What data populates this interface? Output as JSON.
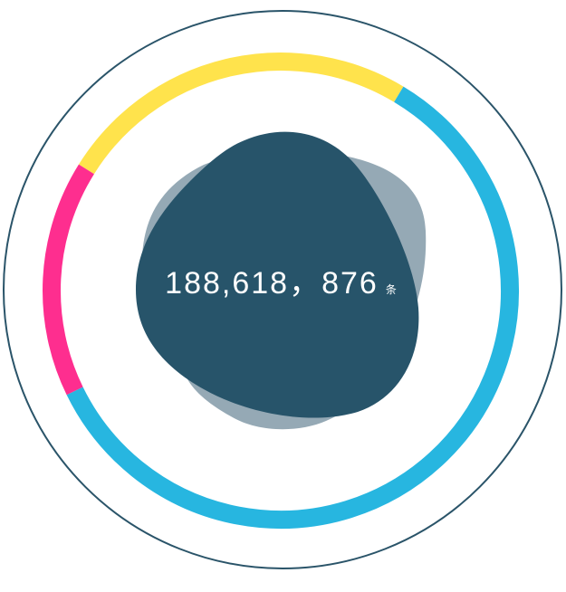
{
  "counter": {
    "value": "188,618，876",
    "unit": "条"
  },
  "ring_segments": [
    {
      "name": "yellow",
      "color": "#ffe34c",
      "start_deg": -58,
      "end_deg": 31
    },
    {
      "name": "cyan",
      "color": "#27b6e0",
      "start_deg": 31,
      "end_deg": 244
    },
    {
      "name": "pink",
      "color": "#fe2e8f",
      "start_deg": 244,
      "end_deg": 302
    }
  ],
  "colors": {
    "outer_ring": "#2a5469",
    "blob_dark": "#27546a",
    "blob_light": "#95a9b5",
    "background": "#ffffff"
  }
}
